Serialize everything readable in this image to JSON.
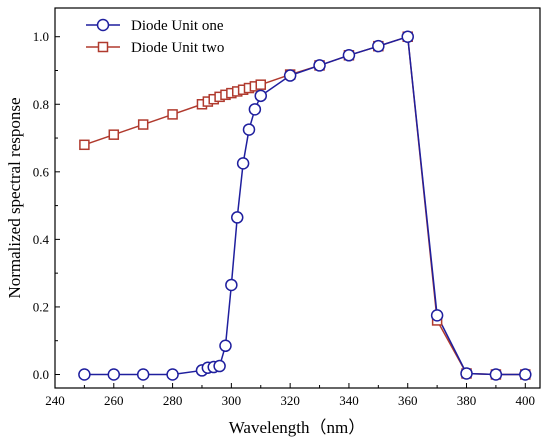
{
  "chart_data": {
    "type": "line",
    "title": "",
    "xlabel": "Wavelength（nm）",
    "ylabel": "Normalized spectral response",
    "xlim": [
      240,
      405
    ],
    "ylim": [
      -0.04,
      1.085
    ],
    "xticks": [
      240,
      260,
      280,
      300,
      320,
      340,
      360,
      380,
      400
    ],
    "yticks": [
      0.0,
      0.2,
      0.4,
      0.6,
      0.8,
      1.0
    ],
    "grid": false,
    "legend_position": "top-left",
    "series": [
      {
        "name": "Diode Unit one",
        "color": "#1f1f9e",
        "marker": "circle",
        "x": [
          250,
          260,
          270,
          280,
          290,
          292,
          294,
          296,
          298,
          300,
          302,
          304,
          306,
          308,
          310,
          320,
          330,
          340,
          350,
          360,
          370,
          380,
          390,
          400
        ],
        "y": [
          0.0,
          0.0,
          0.0,
          0.0,
          0.012,
          0.02,
          0.022,
          0.025,
          0.085,
          0.265,
          0.465,
          0.625,
          0.725,
          0.785,
          0.825,
          0.885,
          0.915,
          0.945,
          0.972,
          1.0,
          0.175,
          0.003,
          0.0,
          0.0
        ]
      },
      {
        "name": "Diode Unit two",
        "color": "#b03a2e",
        "marker": "square",
        "x": [
          250,
          260,
          270,
          280,
          290,
          292,
          294,
          296,
          298,
          300,
          302,
          304,
          306,
          308,
          310,
          320,
          330,
          340,
          350,
          360,
          370,
          380,
          390,
          400
        ],
        "y": [
          0.68,
          0.71,
          0.74,
          0.77,
          0.8,
          0.808,
          0.815,
          0.822,
          0.828,
          0.833,
          0.838,
          0.843,
          0.848,
          0.853,
          0.858,
          0.888,
          0.915,
          0.945,
          0.972,
          1.0,
          0.16,
          0.003,
          0.0,
          0.0
        ]
      }
    ]
  }
}
